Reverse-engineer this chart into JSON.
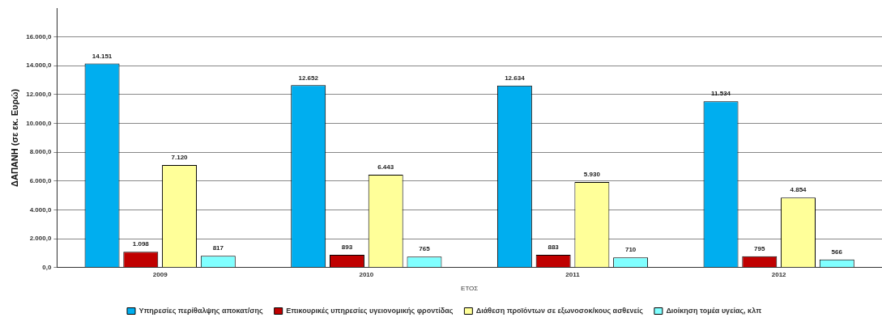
{
  "chart_data": {
    "type": "bar",
    "xlabel": "ΕΤΟΣ",
    "ylabel": "ΔΑΠΑΝΗ (σε εκ. Ευρώ)",
    "categories": [
      "2009",
      "2010",
      "2011",
      "2012"
    ],
    "series": [
      {
        "name": "Υπηρεσίες περίθαλψης αποκατ/σης",
        "color": "#00aeef",
        "values": [
          14151,
          12652,
          12634,
          11534
        ],
        "value_labels": [
          "14.151",
          "12.652",
          "12.634",
          "11.534"
        ]
      },
      {
        "name": "Επικουρικές υπηρεσίες υγειονομικής φροντίδας",
        "color": "#c00000",
        "values": [
          1098,
          893,
          883,
          795
        ],
        "value_labels": [
          "1.098",
          "893",
          "883",
          "795"
        ]
      },
      {
        "name": "Διάθεση προϊόντων σε εξωνοσοκ/κους ασθενείς",
        "color": "#ffff99",
        "values": [
          7120,
          6443,
          5930,
          4854
        ],
        "value_labels": [
          "7.120",
          "6.443",
          "5.930",
          "4.854"
        ]
      },
      {
        "name": "Διοίκηση τομέα υγείας, κλπ",
        "color": "#80ffff",
        "values": [
          817,
          765,
          710,
          566
        ],
        "value_labels": [
          "817",
          "765",
          "710",
          "566"
        ]
      }
    ],
    "ylim": [
      0,
      18000
    ],
    "yticks": [
      {
        "value": 0,
        "label": "0,0"
      },
      {
        "value": 2000,
        "label": "2.000,0"
      },
      {
        "value": 4000,
        "label": "4.000,0"
      },
      {
        "value": 6000,
        "label": "6.000,0"
      },
      {
        "value": 8000,
        "label": "8.000,0"
      },
      {
        "value": 10000,
        "label": "10.000,0"
      },
      {
        "value": 12000,
        "label": "12.000,0"
      },
      {
        "value": 14000,
        "label": "14.000,0"
      },
      {
        "value": 16000,
        "label": "16.000,0"
      }
    ],
    "grid": "y",
    "legend": "bottom"
  }
}
